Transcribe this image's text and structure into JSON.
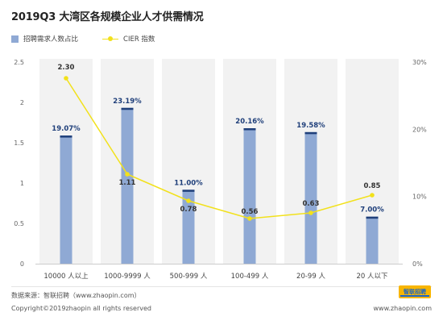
{
  "header": {
    "title": "2019Q3 大湾区各规模企业人才供需情况"
  },
  "legend": {
    "bar_label": "招聘需求人数占比",
    "line_label": "CIER 指数"
  },
  "footer": {
    "source": "数据来源：智联招聘（www.zhaopin.com）",
    "copyright": "Copyright©2019zhaopin all rights reserved",
    "website": "www.zhaopin.com",
    "logo_text": "智联招聘"
  },
  "colors": {
    "bar": "#8fa9d4",
    "bar_cap": "#1f3f7a",
    "line": "#f2e11b",
    "band": "#f2f2f2",
    "label_dark": "#1f3f7a"
  },
  "chart_data": {
    "type": "bar",
    "categories": [
      "10000 人以上",
      "1000-9999 人",
      "500-999 人",
      "100-499 人",
      "20-99 人",
      "20 人以下"
    ],
    "series": [
      {
        "name": "招聘需求人数占比",
        "type": "bar",
        "axis": "right",
        "values": [
          19.07,
          23.19,
          11.0,
          20.16,
          19.58,
          7.0
        ],
        "labels": [
          "19.07%",
          "23.19%",
          "11.00%",
          "20.16%",
          "19.58%",
          "7.00%"
        ]
      },
      {
        "name": "CIER 指数",
        "type": "line",
        "axis": "left",
        "values": [
          2.3,
          1.11,
          0.78,
          0.56,
          0.63,
          0.85
        ],
        "labels": [
          "2.30",
          "1.11",
          "0.78",
          "0.56",
          "0.63",
          "0.85"
        ]
      }
    ],
    "y_left": {
      "min": 0,
      "max": 2.5,
      "ticks": [
        "0",
        "0.5",
        "1",
        "1.5",
        "2",
        "2.5"
      ]
    },
    "y_right": {
      "min": 0,
      "max": 30,
      "ticks": [
        "0%",
        "10%",
        "20%",
        "30%"
      ]
    },
    "legend_position": "top-left",
    "grid": false
  }
}
